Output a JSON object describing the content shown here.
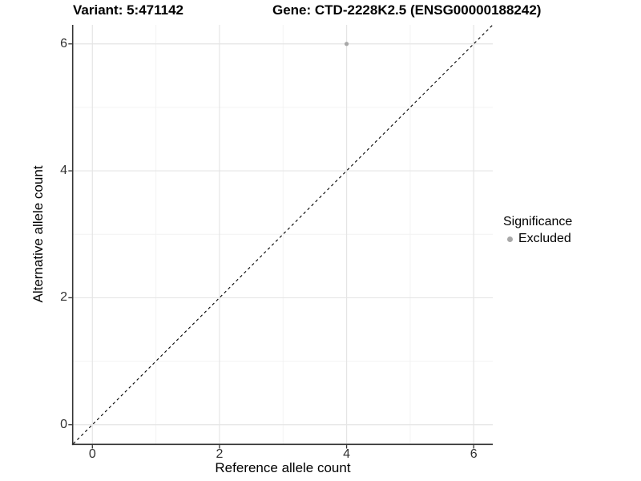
{
  "titles": {
    "variant": "Variant: 5:471142",
    "gene": "Gene: CTD-2228K2.5 (ENSG00000188242)"
  },
  "chart_data": {
    "type": "scatter",
    "xlabel": "Reference allele count",
    "ylabel": "Alternative allele count",
    "xlim": [
      -0.3,
      6.3
    ],
    "ylim": [
      -0.3,
      6.3
    ],
    "x_major_ticks": [
      0,
      2,
      4,
      6
    ],
    "y_major_ticks": [
      0,
      2,
      4,
      6
    ],
    "x_minor_ticks": [
      1,
      3,
      5
    ],
    "y_minor_ticks": [
      1,
      3,
      5
    ],
    "grid": true,
    "points": [
      {
        "x": 4,
        "y": 6,
        "significance": "Excluded"
      }
    ],
    "reference_line": {
      "type": "identity",
      "from": [
        -0.3,
        -0.3
      ],
      "to": [
        6.3,
        6.3
      ],
      "style": "dashed"
    },
    "legend": {
      "title": "Significance",
      "position": "right",
      "entries": [
        {
          "label": "Excluded",
          "color": "#a8a8a8",
          "marker": "circle"
        }
      ]
    }
  },
  "colors": {
    "grid_major": "#e5e5e5",
    "grid_minor": "#f2f2f2",
    "axis_line": "#333333",
    "tick_mark": "#333333",
    "point": "#a8a8a8",
    "identity_line": "#000000",
    "background": "#ffffff"
  }
}
